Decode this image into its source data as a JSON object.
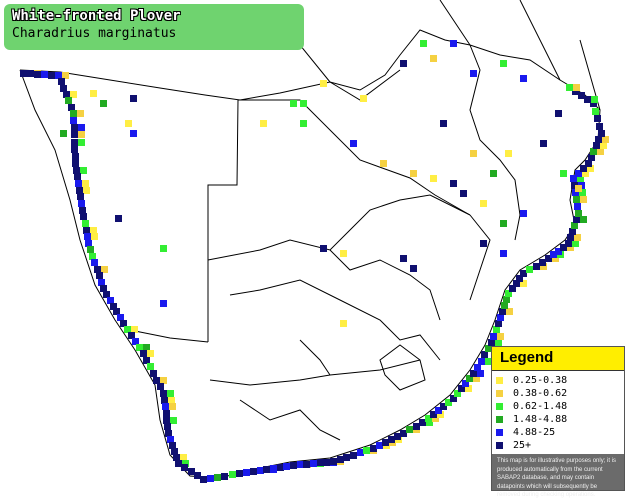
{
  "title": {
    "common_name": "White-fronted Plover",
    "scientific_name": "Charadrius marginatus"
  },
  "legend": {
    "heading": "Legend",
    "items": [
      {
        "label": "0.25-0.38",
        "color": "#ffee44"
      },
      {
        "label": "0.38-0.62",
        "color": "#f5d142"
      },
      {
        "label": "0.62-1.48",
        "color": "#33ee33"
      },
      {
        "label": "1.48-4.88",
        "color": "#22aa22"
      },
      {
        "label": "4.88-25",
        "color": "#1a1aee"
      },
      {
        "label": "25+",
        "color": "#101070"
      }
    ],
    "note": "This map is for illustrative purposes only; it is produced automatically from the current SABAP2 database, and may contain datapoints which will subsequently be removed during checking operations."
  }
}
